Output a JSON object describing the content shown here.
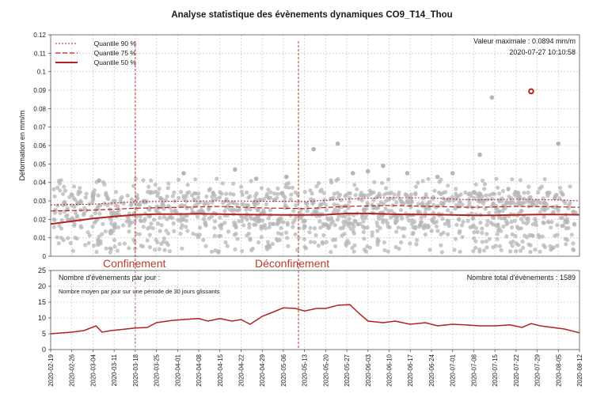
{
  "chart_data": [
    {
      "type": "scatter",
      "title": "Analyse statistique des évènements dynamiques CO9_T14_Thou",
      "ylabel": "Déformation en mm/m",
      "xlabel": "",
      "ylim": [
        0,
        0.12
      ],
      "yticks": [
        "0",
        "0.01",
        "0.02",
        "0.03",
        "0.04",
        "0.05",
        "0.06",
        "0.07",
        "0.08",
        "0.09",
        "0.1",
        "0.11",
        "0.12"
      ],
      "x_range": [
        "2020-02-19",
        "2020-08-12"
      ],
      "grid": true,
      "legend_position": "top-left",
      "legend": [
        "Quantile 90 %",
        "Quantile 75 %",
        "Quantile 50 %"
      ],
      "max_label": "Valeur maximale : 0.0894 mm/m",
      "max_date_label": "2020-07-27 10:10:58",
      "max_point": {
        "x": "2020-07-27",
        "y": 0.0894
      },
      "point_color": "#b5b5b5",
      "line_color": "#b22222",
      "outliers": [
        {
          "x": "2020-05-16",
          "y": 0.058
        },
        {
          "x": "2020-05-24",
          "y": 0.061
        },
        {
          "x": "2020-06-08",
          "y": 0.049
        },
        {
          "x": "2020-06-03",
          "y": 0.046
        },
        {
          "x": "2020-05-29",
          "y": 0.045
        },
        {
          "x": "2020-07-14",
          "y": 0.086
        },
        {
          "x": "2020-07-10",
          "y": 0.055
        },
        {
          "x": "2020-08-05",
          "y": 0.061
        },
        {
          "x": "2020-04-03",
          "y": 0.045
        },
        {
          "x": "2020-04-20",
          "y": 0.047
        },
        {
          "x": "2020-06-16",
          "y": 0.045
        },
        {
          "x": "2020-03-06",
          "y": 0.041
        },
        {
          "x": "2020-07-01",
          "y": 0.045
        },
        {
          "x": "2020-06-26",
          "y": 0.043
        },
        {
          "x": "2020-04-27",
          "y": 0.042
        },
        {
          "x": "2020-05-07",
          "y": 0.043
        }
      ],
      "series": [
        {
          "name": "Quantile 90 %",
          "x": [
            "2020-02-19",
            "2020-03-04",
            "2020-03-18",
            "2020-04-01",
            "2020-04-15",
            "2020-04-29",
            "2020-05-13",
            "2020-05-27",
            "2020-06-10",
            "2020-06-24",
            "2020-07-08",
            "2020-07-22",
            "2020-08-05",
            "2020-08-12"
          ],
          "values": [
            0.0278,
            0.0282,
            0.0295,
            0.0298,
            0.03,
            0.0298,
            0.0296,
            0.031,
            0.0318,
            0.0316,
            0.0305,
            0.031,
            0.0305,
            0.03
          ]
        },
        {
          "name": "Quantile 75 %",
          "x": [
            "2020-02-19",
            "2020-03-04",
            "2020-03-18",
            "2020-04-01",
            "2020-04-15",
            "2020-04-29",
            "2020-05-13",
            "2020-05-27",
            "2020-06-10",
            "2020-06-24",
            "2020-07-08",
            "2020-07-22",
            "2020-08-05",
            "2020-08-12"
          ],
          "values": [
            0.0245,
            0.025,
            0.026,
            0.0265,
            0.027,
            0.0262,
            0.0258,
            0.027,
            0.0275,
            0.027,
            0.0265,
            0.027,
            0.0268,
            0.0265
          ]
        },
        {
          "name": "Quantile 50 %",
          "x": [
            "2020-02-19",
            "2020-02-26",
            "2020-03-04",
            "2020-03-11",
            "2020-03-18",
            "2020-03-25",
            "2020-04-01",
            "2020-04-08",
            "2020-04-15",
            "2020-04-22",
            "2020-04-29",
            "2020-05-06",
            "2020-05-13",
            "2020-05-20",
            "2020-05-27",
            "2020-06-03",
            "2020-06-10",
            "2020-06-17",
            "2020-06-24",
            "2020-07-01",
            "2020-07-08",
            "2020-07-15",
            "2020-07-22",
            "2020-07-29",
            "2020-08-05",
            "2020-08-12"
          ],
          "values": [
            0.0175,
            0.019,
            0.0205,
            0.0215,
            0.0225,
            0.0228,
            0.0228,
            0.023,
            0.0228,
            0.0226,
            0.0225,
            0.0224,
            0.0224,
            0.0225,
            0.0232,
            0.0232,
            0.0228,
            0.0226,
            0.0226,
            0.0224,
            0.0222,
            0.0222,
            0.0224,
            0.0226,
            0.0226,
            0.0225
          ]
        }
      ]
    },
    {
      "type": "line",
      "title": "Nombre d'évènements par jour :",
      "subtitle": "Nombre moyen par jour sur une période de 30 jours glissants",
      "total_label": "Nombre total d'évènements : 1589",
      "ylim": [
        0,
        25
      ],
      "yticks": [
        "0",
        "5",
        "10",
        "15",
        "20",
        "25"
      ],
      "xticks": [
        "2020-02-19",
        "2020-02-26",
        "2020-03-04",
        "2020-03-11",
        "2020-03-18",
        "2020-03-25",
        "2020-04-01",
        "2020-04-08",
        "2020-04-15",
        "2020-04-22",
        "2020-04-29",
        "2020-05-06",
        "2020-05-13",
        "2020-05-20",
        "2020-05-27",
        "2020-06-03",
        "2020-06-10",
        "2020-06-17",
        "2020-06-24",
        "2020-07-01",
        "2020-07-08",
        "2020-07-15",
        "2020-07-22",
        "2020-07-29",
        "2020-08-05",
        "2020-08-12"
      ],
      "grid": true,
      "line_color": "#b22222",
      "series": [
        {
          "x": [
            "2020-02-19",
            "2020-02-26",
            "2020-03-01",
            "2020-03-05",
            "2020-03-07",
            "2020-03-10",
            "2020-03-15",
            "2020-03-18",
            "2020-03-22",
            "2020-03-25",
            "2020-03-30",
            "2020-04-03",
            "2020-04-08",
            "2020-04-11",
            "2020-04-15",
            "2020-04-19",
            "2020-04-22",
            "2020-04-25",
            "2020-04-29",
            "2020-05-03",
            "2020-05-06",
            "2020-05-10",
            "2020-05-13",
            "2020-05-17",
            "2020-05-20",
            "2020-05-24",
            "2020-05-28",
            "2020-05-31",
            "2020-06-03",
            "2020-06-08",
            "2020-06-12",
            "2020-06-17",
            "2020-06-22",
            "2020-06-26",
            "2020-07-01",
            "2020-07-05",
            "2020-07-10",
            "2020-07-15",
            "2020-07-20",
            "2020-07-24",
            "2020-07-27",
            "2020-07-30",
            "2020-08-03",
            "2020-08-07",
            "2020-08-12"
          ],
          "values": [
            5.0,
            5.5,
            6.0,
            7.5,
            5.5,
            6.0,
            6.5,
            6.8,
            7.0,
            8.5,
            9.2,
            9.5,
            9.8,
            9.0,
            9.8,
            9.0,
            9.5,
            8.0,
            10.5,
            12.0,
            13.2,
            13.0,
            12.2,
            13.0,
            13.0,
            14.0,
            14.2,
            11.5,
            9.0,
            8.5,
            9.0,
            8.0,
            8.5,
            7.5,
            8.0,
            7.8,
            7.5,
            7.5,
            7.8,
            7.0,
            8.2,
            7.5,
            7.0,
            6.5,
            5.3
          ]
        }
      ]
    }
  ],
  "annotations": {
    "confinement": {
      "label": "Confinement",
      "date": "2020-03-18"
    },
    "deconfinement": {
      "label": "Déconfinement",
      "date": "2020-05-11"
    }
  }
}
